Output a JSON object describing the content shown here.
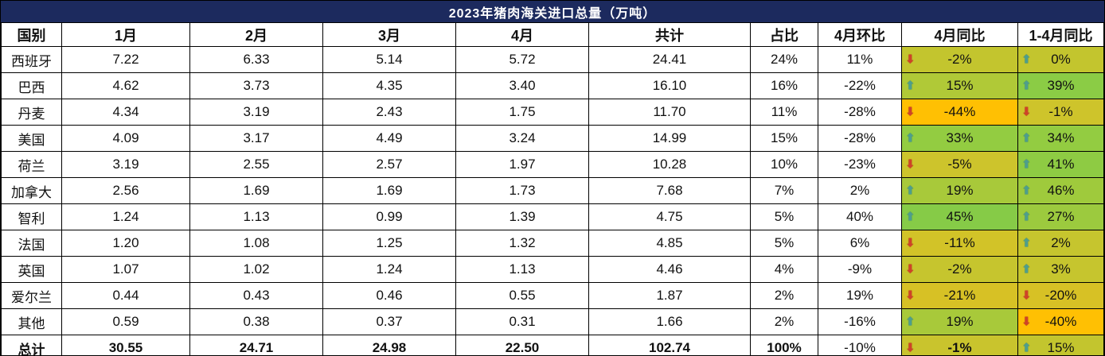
{
  "title": "2023年猪肉海关进口总量（万吨）",
  "colors": {
    "title_bg": "#1c2a5e",
    "title_text": "#ffffff",
    "border": "#000000",
    "up_arrow": "#4e9e8d",
    "down_arrow": "#cf4328"
  },
  "columns": [
    "国别",
    "1月",
    "2月",
    "3月",
    "4月",
    "共计",
    "占比",
    "4月环比",
    "4月同比",
    "1-4月同比"
  ],
  "rows": [
    {
      "country": "西班牙",
      "m1": "7.22",
      "m2": "6.33",
      "m3": "5.14",
      "m4": "5.72",
      "total": "24.41",
      "share": "24%",
      "mom": "11%",
      "yoy_apr": {
        "dir": "down",
        "value": "-2%",
        "bg": "#c3c52e"
      },
      "yoy_ytd": {
        "dir": "up",
        "value": "0%",
        "bg": "#c3c52e"
      }
    },
    {
      "country": "巴西",
      "m1": "4.62",
      "m2": "3.73",
      "m3": "4.35",
      "m4": "3.40",
      "total": "16.10",
      "share": "16%",
      "mom": "-22%",
      "yoy_apr": {
        "dir": "up",
        "value": "15%",
        "bg": "#b0c937"
      },
      "yoy_ytd": {
        "dir": "up",
        "value": "39%",
        "bg": "#8bcc45"
      }
    },
    {
      "country": "丹麦",
      "m1": "4.34",
      "m2": "3.19",
      "m3": "2.43",
      "m4": "1.75",
      "total": "11.70",
      "share": "11%",
      "mom": "-28%",
      "yoy_apr": {
        "dir": "down",
        "value": "-44%",
        "bg": "#ffc003"
      },
      "yoy_ytd": {
        "dir": "down",
        "value": "-1%",
        "bg": "#cec42b"
      }
    },
    {
      "country": "美国",
      "m1": "4.09",
      "m2": "3.17",
      "m3": "4.49",
      "m4": "3.24",
      "total": "14.99",
      "share": "15%",
      "mom": "-28%",
      "yoy_apr": {
        "dir": "up",
        "value": "33%",
        "bg": "#93cc41"
      },
      "yoy_ytd": {
        "dir": "up",
        "value": "34%",
        "bg": "#93cc41"
      }
    },
    {
      "country": "荷兰",
      "m1": "3.19",
      "m2": "2.55",
      "m3": "2.57",
      "m4": "1.97",
      "total": "10.28",
      "share": "10%",
      "mom": "-23%",
      "yoy_apr": {
        "dir": "down",
        "value": "-5%",
        "bg": "#cdc42c"
      },
      "yoy_ytd": {
        "dir": "up",
        "value": "41%",
        "bg": "#8ecb43"
      }
    },
    {
      "country": "加拿大",
      "m1": "2.56",
      "m2": "1.69",
      "m3": "1.69",
      "m4": "1.73",
      "total": "7.68",
      "share": "7%",
      "mom": "2%",
      "yoy_apr": {
        "dir": "up",
        "value": "19%",
        "bg": "#a8c93a"
      },
      "yoy_ytd": {
        "dir": "up",
        "value": "46%",
        "bg": "#9fca3c"
      }
    },
    {
      "country": "智利",
      "m1": "1.24",
      "m2": "1.13",
      "m3": "0.99",
      "m4": "1.39",
      "total": "4.75",
      "share": "5%",
      "mom": "40%",
      "yoy_apr": {
        "dir": "up",
        "value": "45%",
        "bg": "#86cb47"
      },
      "yoy_ytd": {
        "dir": "up",
        "value": "27%",
        "bg": "#9cca3e"
      }
    },
    {
      "country": "法国",
      "m1": "1.20",
      "m2": "1.08",
      "m3": "1.25",
      "m4": "1.32",
      "total": "4.85",
      "share": "5%",
      "mom": "6%",
      "yoy_apr": {
        "dir": "down",
        "value": "-11%",
        "bg": "#d2c328"
      },
      "yoy_ytd": {
        "dir": "up",
        "value": "2%",
        "bg": "#c6c52e"
      }
    },
    {
      "country": "英国",
      "m1": "1.07",
      "m2": "1.02",
      "m3": "1.24",
      "m4": "1.13",
      "total": "4.46",
      "share": "4%",
      "mom": "-9%",
      "yoy_apr": {
        "dir": "down",
        "value": "-2%",
        "bg": "#c6c52e"
      },
      "yoy_ytd": {
        "dir": "up",
        "value": "3%",
        "bg": "#c6c52e"
      }
    },
    {
      "country": "爱尔兰",
      "m1": "0.44",
      "m2": "0.43",
      "m3": "0.46",
      "m4": "0.55",
      "total": "1.87",
      "share": "2%",
      "mom": "19%",
      "yoy_apr": {
        "dir": "down",
        "value": "-21%",
        "bg": "#d7c125"
      },
      "yoy_ytd": {
        "dir": "down",
        "value": "-20%",
        "bg": "#d7c125"
      }
    },
    {
      "country": "其他",
      "m1": "0.59",
      "m2": "0.38",
      "m3": "0.37",
      "m4": "0.31",
      "total": "1.66",
      "share": "2%",
      "mom": "-16%",
      "yoy_apr": {
        "dir": "up",
        "value": "19%",
        "bg": "#a8c93a"
      },
      "yoy_ytd": {
        "dir": "down",
        "value": "-40%",
        "bg": "#ffc003"
      }
    },
    {
      "country": "总计",
      "is_total": true,
      "m1": "30.55",
      "m2": "24.71",
      "m3": "24.98",
      "m4": "22.50",
      "total": "102.74",
      "share": "100%",
      "mom": "-10%",
      "yoy_apr": {
        "dir": "down",
        "value": "-1%",
        "bg": "#c9c42d",
        "bold": true
      },
      "yoy_ytd": {
        "dir": "up",
        "value": "15%",
        "bg": "#c3c52e",
        "bold": false
      }
    }
  ],
  "chart_data": {
    "type": "table",
    "title": "2023年猪肉海关进口总量（万吨）",
    "columns": [
      "国别",
      "1月",
      "2月",
      "3月",
      "4月",
      "共计",
      "占比",
      "4月环比",
      "4月同比",
      "1-4月同比"
    ],
    "rows": [
      [
        "西班牙",
        "7.22",
        "6.33",
        "5.14",
        "5.72",
        "24.41",
        "24%",
        "11%",
        "-2%",
        "0%"
      ],
      [
        "巴西",
        "4.62",
        "3.73",
        "4.35",
        "3.40",
        "16.10",
        "16%",
        "-22%",
        "15%",
        "39%"
      ],
      [
        "丹麦",
        "4.34",
        "3.19",
        "2.43",
        "1.75",
        "11.70",
        "11%",
        "-28%",
        "-44%",
        "-1%"
      ],
      [
        "美国",
        "4.09",
        "3.17",
        "4.49",
        "3.24",
        "14.99",
        "15%",
        "-28%",
        "33%",
        "34%"
      ],
      [
        "荷兰",
        "3.19",
        "2.55",
        "2.57",
        "1.97",
        "10.28",
        "10%",
        "-23%",
        "-5%",
        "41%"
      ],
      [
        "加拿大",
        "2.56",
        "1.69",
        "1.69",
        "1.73",
        "7.68",
        "7%",
        "2%",
        "19%",
        "46%"
      ],
      [
        "智利",
        "1.24",
        "1.13",
        "0.99",
        "1.39",
        "4.75",
        "5%",
        "40%",
        "45%",
        "27%"
      ],
      [
        "法国",
        "1.20",
        "1.08",
        "1.25",
        "1.32",
        "4.85",
        "5%",
        "6%",
        "-11%",
        "2%"
      ],
      [
        "英国",
        "1.07",
        "1.02",
        "1.24",
        "1.13",
        "4.46",
        "4%",
        "-9%",
        "-2%",
        "3%"
      ],
      [
        "爱尔兰",
        "0.44",
        "0.43",
        "0.46",
        "0.55",
        "1.87",
        "2%",
        "19%",
        "-21%",
        "-20%"
      ],
      [
        "其他",
        "0.59",
        "0.38",
        "0.37",
        "0.31",
        "1.66",
        "2%",
        "-16%",
        "19%",
        "-40%"
      ],
      [
        "总计",
        "30.55",
        "24.71",
        "24.98",
        "22.50",
        "102.74",
        "100%",
        "-10%",
        "-1%",
        "15%"
      ]
    ]
  }
}
